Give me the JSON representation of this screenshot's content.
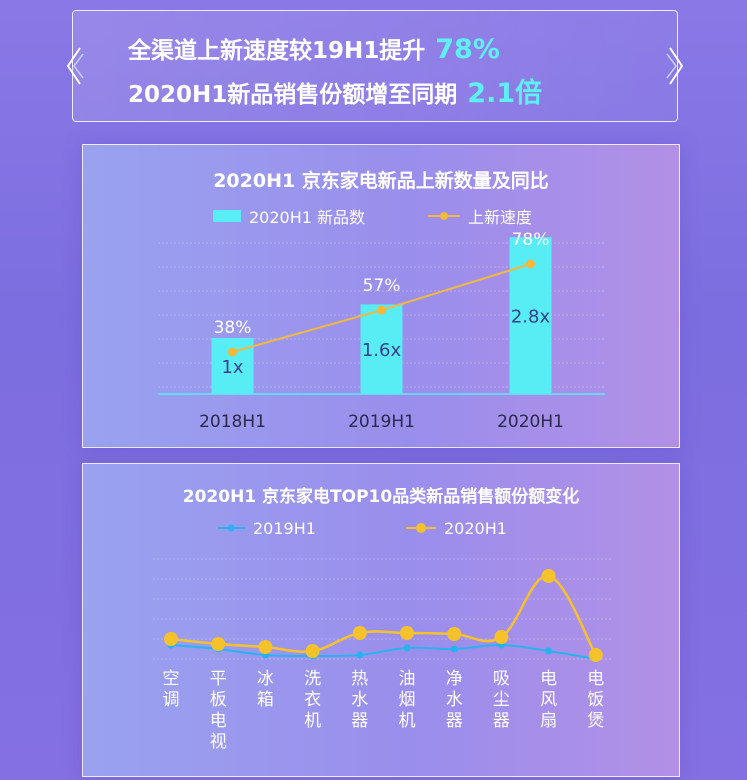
{
  "banner": {
    "line1": "全渠道上新速度较19H1提升",
    "line1_value": "78%",
    "line2": "2020H1新品销售份额增至同期",
    "line2_value": "2.1倍"
  },
  "colors": {
    "bar": "#58ecf4",
    "rate_line": "#f2b93c",
    "line_2019": "#29b3ee",
    "line_2020": "#f6c22c",
    "text_dark": "#2a2a4a",
    "highlight": "#5ff0f6"
  },
  "chart_data": [
    {
      "type": "bar",
      "title": "2020H1 京东家电新品上新数量及同比",
      "categories": [
        "2018H1",
        "2019H1",
        "2020H1"
      ],
      "series": [
        {
          "name": "2020H1 新品数",
          "type": "bar",
          "values": [
            1,
            1.6,
            2.8
          ],
          "labels": [
            "1x",
            "1.6x",
            "2.8x"
          ]
        },
        {
          "name": "上新速度",
          "type": "line",
          "values": [
            38,
            57,
            78
          ],
          "labels": [
            "38%",
            "57%",
            "78%"
          ]
        }
      ],
      "legend": "top-center",
      "grid": true
    },
    {
      "type": "line",
      "title": "2020H1 京东家电TOP10品类新品销售额份额变化",
      "categories": [
        "空调",
        "平板电视",
        "冰箱",
        "洗衣机",
        "热水器",
        "油烟机",
        "净水器",
        "吸尘器",
        "电风扇",
        "电饭煲"
      ],
      "series": [
        {
          "name": "2019H1",
          "values": [
            0.7,
            0.5,
            0.2,
            0.15,
            0.2,
            0.55,
            0.5,
            0.7,
            0.4,
            0.0
          ]
        },
        {
          "name": "2020H1",
          "values": [
            1.0,
            0.75,
            0.6,
            0.4,
            1.3,
            1.3,
            1.25,
            1.1,
            4.15,
            0.2
          ]
        }
      ],
      "legend": "top-center",
      "grid": true
    }
  ]
}
